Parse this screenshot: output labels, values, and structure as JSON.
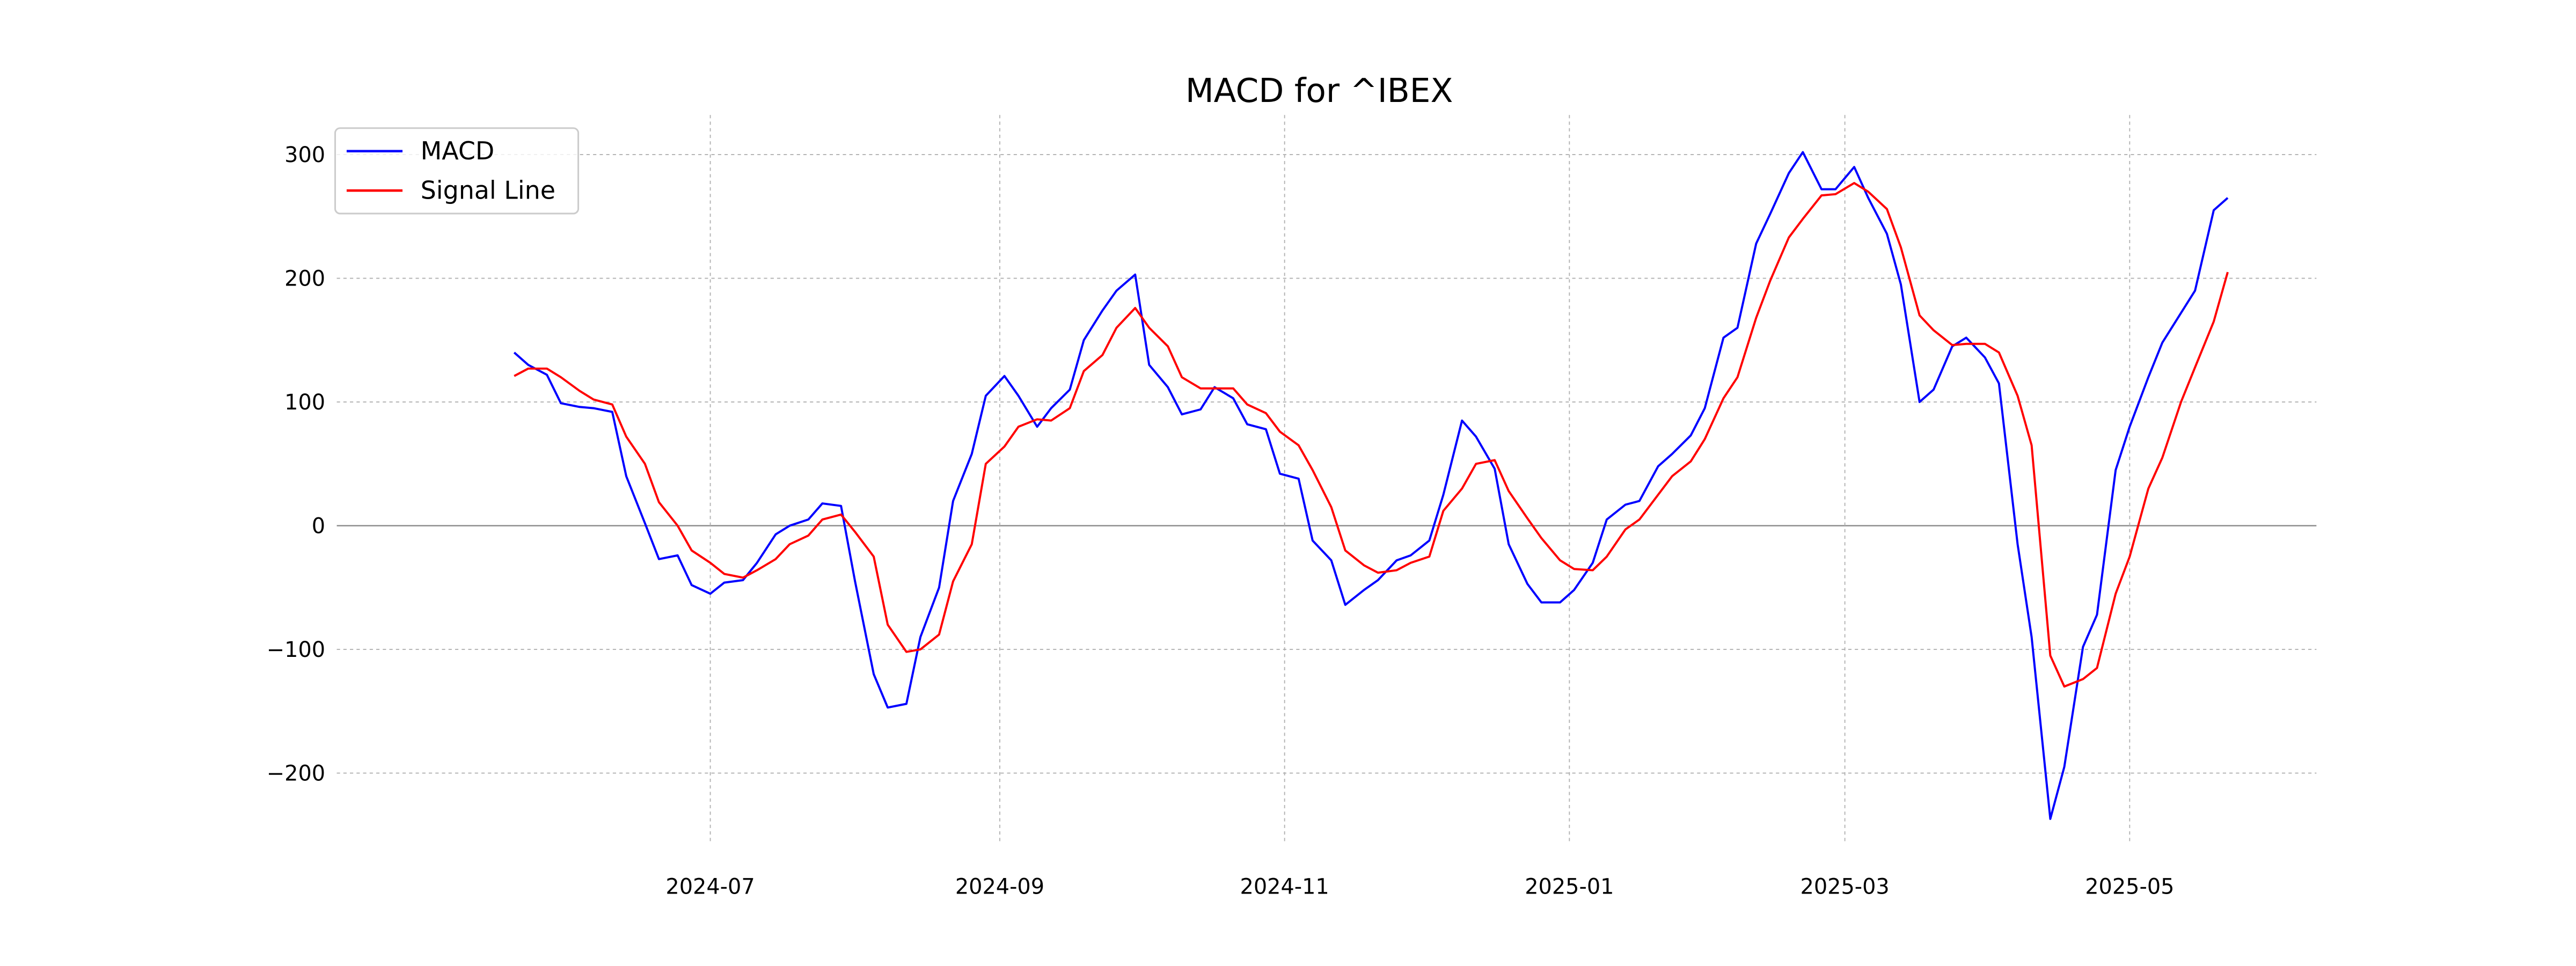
{
  "chart_data": {
    "type": "line",
    "title": "MACD for ^IBEX",
    "xlabel": "",
    "ylabel": "",
    "grid": true,
    "legend_position": "top-left",
    "xlim": [
      "2024-04-12",
      "2025-06-10"
    ],
    "ylim": [
      -255,
      332
    ],
    "x_ticks": [
      "2024-07-01",
      "2024-09-01",
      "2024-11-01",
      "2025-01-01",
      "2025-03-01",
      "2025-05-01"
    ],
    "x_tick_labels": [
      "2024-07",
      "2024-09",
      "2024-11",
      "2025-01",
      "2025-03",
      "2025-05"
    ],
    "y_ticks": [
      300,
      200,
      100,
      0,
      -100,
      -200
    ],
    "y_tick_labels": [
      "300",
      "200",
      "100",
      "0",
      "−100",
      "−200"
    ],
    "x": [
      "2024-05-20",
      "2024-05-23",
      "2024-05-27",
      "2024-05-30",
      "2024-06-03",
      "2024-06-06",
      "2024-06-10",
      "2024-06-13",
      "2024-06-17",
      "2024-06-20",
      "2024-06-24",
      "2024-06-27",
      "2024-07-01",
      "2024-07-04",
      "2024-07-08",
      "2024-07-11",
      "2024-07-15",
      "2024-07-18",
      "2024-07-22",
      "2024-07-25",
      "2024-07-29",
      "2024-08-01",
      "2024-08-05",
      "2024-08-08",
      "2024-08-12",
      "2024-08-15",
      "2024-08-19",
      "2024-08-22",
      "2024-08-26",
      "2024-08-29",
      "2024-09-02",
      "2024-09-05",
      "2024-09-09",
      "2024-09-12",
      "2024-09-16",
      "2024-09-19",
      "2024-09-23",
      "2024-09-26",
      "2024-09-30",
      "2024-10-03",
      "2024-10-07",
      "2024-10-10",
      "2024-10-14",
      "2024-10-17",
      "2024-10-21",
      "2024-10-24",
      "2024-10-28",
      "2024-10-31",
      "2024-11-04",
      "2024-11-07",
      "2024-11-11",
      "2024-11-14",
      "2024-11-18",
      "2024-11-21",
      "2024-11-25",
      "2024-11-28",
      "2024-12-02",
      "2024-12-05",
      "2024-12-09",
      "2024-12-12",
      "2024-12-16",
      "2024-12-19",
      "2024-12-23",
      "2024-12-26",
      "2024-12-30",
      "2025-01-02",
      "2025-01-06",
      "2025-01-09",
      "2025-01-13",
      "2025-01-16",
      "2025-01-20",
      "2025-01-23",
      "2025-01-27",
      "2025-01-30",
      "2025-02-03",
      "2025-02-06",
      "2025-02-10",
      "2025-02-13",
      "2025-02-17",
      "2025-02-20",
      "2025-02-24",
      "2025-02-27",
      "2025-03-03",
      "2025-03-06",
      "2025-03-10",
      "2025-03-13",
      "2025-03-17",
      "2025-03-20",
      "2025-03-24",
      "2025-03-27",
      "2025-03-31",
      "2025-04-03",
      "2025-04-07",
      "2025-04-10",
      "2025-04-14",
      "2025-04-17",
      "2025-04-21",
      "2025-04-24",
      "2025-04-28",
      "2025-05-01",
      "2025-05-05",
      "2025-05-08",
      "2025-05-12",
      "2025-05-15",
      "2025-05-19",
      "2025-05-22"
    ],
    "series": [
      {
        "name": "MACD",
        "color": "#0000ff",
        "values": [
          140,
          130,
          122,
          99,
          96,
          95,
          92,
          40,
          2,
          -27,
          -24,
          -48,
          -55,
          -46,
          -44,
          -30,
          -7,
          0,
          5,
          18,
          16,
          -45,
          -120,
          -147,
          -144,
          -90,
          -50,
          20,
          58,
          105,
          121,
          105,
          80,
          95,
          110,
          150,
          174,
          190,
          203,
          130,
          112,
          90,
          94,
          112,
          103,
          82,
          78,
          42,
          38,
          -12,
          -28,
          -64,
          -52,
          -44,
          -28,
          -24,
          -12,
          25,
          85,
          72,
          46,
          -15,
          -47,
          -62,
          -62,
          -52,
          -30,
          5,
          17,
          20,
          48,
          58,
          73,
          95,
          152,
          160,
          228,
          252,
          285,
          302,
          272,
          272,
          290,
          265,
          236,
          195,
          100,
          110,
          145,
          152,
          136,
          115,
          -15,
          -90,
          -237,
          -195,
          -98,
          -72,
          45,
          80,
          120,
          148,
          172,
          190,
          255,
          265
        ]
      },
      {
        "name": "Signal Line",
        "color": "#ff0000",
        "values": [
          121,
          127,
          127,
          120,
          109,
          102,
          98,
          72,
          50,
          19,
          0,
          -20,
          -30,
          -39,
          -42,
          -36,
          -27,
          -15,
          -8,
          5,
          9,
          -5,
          -25,
          -80,
          -102,
          -100,
          -88,
          -45,
          -15,
          50,
          64,
          80,
          86,
          85,
          95,
          125,
          138,
          160,
          176,
          160,
          145,
          120,
          111,
          111,
          111,
          98,
          91,
          76,
          65,
          45,
          15,
          -20,
          -32,
          -38,
          -36,
          -30,
          -25,
          12,
          30,
          50,
          53,
          28,
          6,
          -10,
          -28,
          -35,
          -36,
          -25,
          -3,
          5,
          25,
          40,
          52,
          70,
          103,
          120,
          168,
          198,
          233,
          248,
          267,
          268,
          277,
          270,
          256,
          225,
          170,
          158,
          146,
          147,
          147,
          140,
          105,
          65,
          -105,
          -130,
          -124,
          -115,
          -55,
          -25,
          30,
          55,
          100,
          128,
          165,
          205
        ]
      }
    ]
  }
}
